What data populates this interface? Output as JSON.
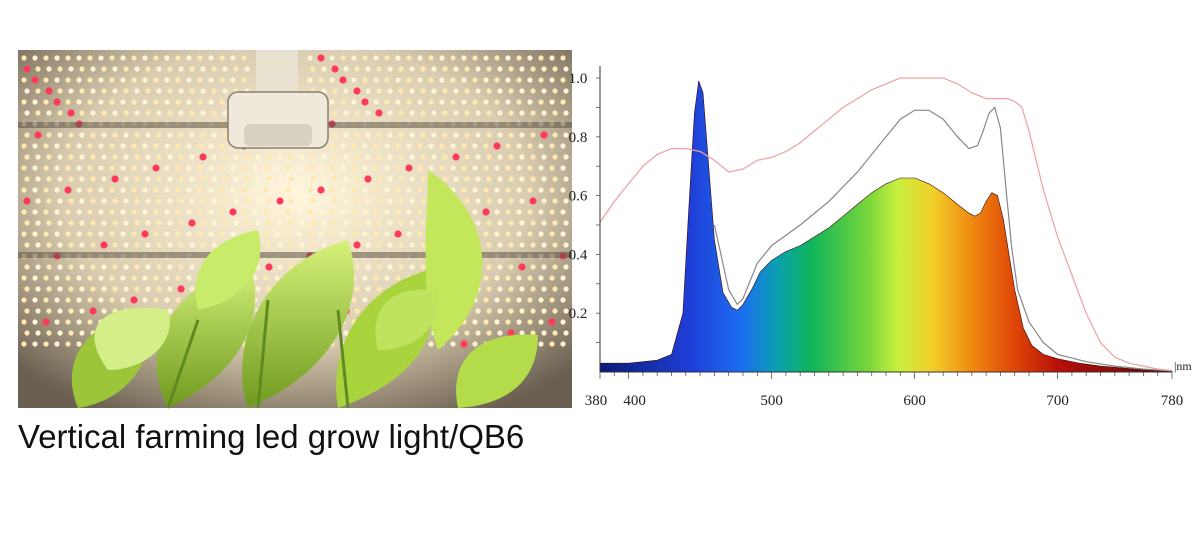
{
  "caption": "Vertical farming led grow light/QB6",
  "photo": {
    "subject": "led-grow-light-photo",
    "led_colors": [
      "#fff4d6",
      "#ffe9b0",
      "#ff3a5a"
    ],
    "leaf_color": "#b9e04a"
  },
  "chart_data": {
    "type": "area",
    "title": "",
    "xlabel": "",
    "ylabel": "",
    "unit": "nm",
    "xlim": [
      380,
      780
    ],
    "ylim": [
      0,
      1.0
    ],
    "x_ticks": [
      380,
      400,
      500,
      600,
      700,
      780
    ],
    "y_ticks": [
      0.2,
      0.4,
      0.6,
      0.8,
      1.0
    ],
    "y_tick_labels": [
      "0.2",
      "0.4",
      "0.6",
      "0.8",
      "1.0"
    ],
    "grid": false,
    "series": [
      {
        "style": "filled-spectrum",
        "x": [
          380,
          400,
          420,
          430,
          438,
          442,
          446,
          449,
          452,
          456,
          460,
          466,
          472,
          476,
          480,
          486,
          492,
          500,
          510,
          520,
          530,
          540,
          550,
          560,
          570,
          580,
          590,
          600,
          610,
          620,
          630,
          638,
          642,
          646,
          650,
          654,
          658,
          662,
          666,
          670,
          676,
          682,
          690,
          700,
          715,
          730,
          750,
          765,
          780
        ],
        "values": [
          0.03,
          0.03,
          0.04,
          0.06,
          0.2,
          0.55,
          0.88,
          0.99,
          0.95,
          0.7,
          0.45,
          0.27,
          0.22,
          0.21,
          0.23,
          0.28,
          0.34,
          0.38,
          0.41,
          0.43,
          0.46,
          0.49,
          0.53,
          0.57,
          0.61,
          0.64,
          0.66,
          0.66,
          0.64,
          0.61,
          0.57,
          0.54,
          0.53,
          0.54,
          0.58,
          0.61,
          0.6,
          0.52,
          0.4,
          0.28,
          0.15,
          0.09,
          0.06,
          0.045,
          0.03,
          0.02,
          0.012,
          0.006,
          0.003
        ]
      },
      {
        "style": "grey-line",
        "color": "#888888",
        "x": [
          460,
          470,
          476,
          480,
          490,
          500,
          520,
          540,
          560,
          580,
          590,
          600,
          610,
          620,
          630,
          638,
          644,
          648,
          652,
          656,
          660,
          664,
          668,
          672,
          680,
          690,
          700,
          720,
          740,
          760,
          780
        ],
        "values": [
          0.5,
          0.28,
          0.23,
          0.25,
          0.37,
          0.43,
          0.5,
          0.58,
          0.68,
          0.8,
          0.86,
          0.89,
          0.89,
          0.86,
          0.8,
          0.76,
          0.77,
          0.82,
          0.88,
          0.9,
          0.83,
          0.62,
          0.42,
          0.28,
          0.17,
          0.1,
          0.06,
          0.035,
          0.02,
          0.01,
          0.004
        ]
      },
      {
        "style": "red-line",
        "color": "#f0a0a0",
        "x": [
          380,
          390,
          400,
          410,
          420,
          430,
          440,
          450,
          460,
          470,
          480,
          490,
          500,
          510,
          520,
          530,
          540,
          550,
          560,
          570,
          580,
          590,
          600,
          610,
          620,
          630,
          640,
          650,
          660,
          665,
          670,
          675,
          680,
          690,
          700,
          710,
          720,
          730,
          740,
          750,
          760,
          770,
          780
        ],
        "values": [
          0.51,
          0.58,
          0.64,
          0.7,
          0.74,
          0.76,
          0.76,
          0.75,
          0.72,
          0.68,
          0.69,
          0.72,
          0.73,
          0.75,
          0.78,
          0.82,
          0.86,
          0.9,
          0.93,
          0.96,
          0.98,
          1.0,
          1.0,
          1.0,
          1.0,
          0.98,
          0.95,
          0.93,
          0.93,
          0.93,
          0.92,
          0.9,
          0.82,
          0.62,
          0.46,
          0.33,
          0.2,
          0.1,
          0.05,
          0.03,
          0.02,
          0.01,
          0.005
        ]
      }
    ]
  }
}
